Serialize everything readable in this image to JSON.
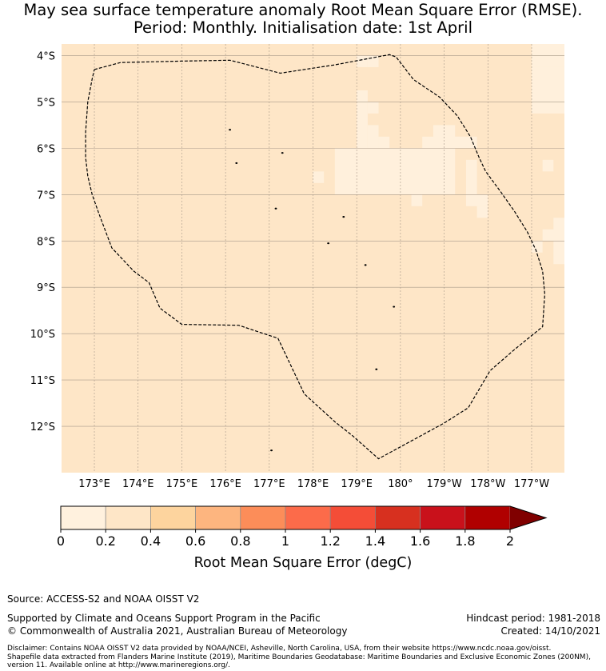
{
  "title": {
    "line1": "May sea surface temperature anomaly Root Mean Square Error (RMSE).",
    "line2": "Period: Monthly. Initialisation date: 1st April"
  },
  "map": {
    "lat_range": [
      -13.0,
      -3.75
    ],
    "lon_range": [
      172.25,
      183.75
    ],
    "lat_labels": [
      "4°S",
      "5°S",
      "6°S",
      "7°S",
      "8°S",
      "9°S",
      "10°S",
      "11°S",
      "12°S"
    ],
    "lat_values": [
      -4,
      -5,
      -6,
      -7,
      -8,
      -9,
      -10,
      -11,
      -12
    ],
    "lon_labels": [
      "173°E",
      "174°E",
      "175°E",
      "176°E",
      "177°E",
      "178°E",
      "179°E",
      "180°",
      "179°W",
      "178°W",
      "177°W"
    ],
    "lon_values": [
      173,
      174,
      175,
      176,
      177,
      178,
      179,
      180,
      181,
      182,
      183
    ],
    "background_color": "#fee6c7",
    "low_value_color": "#fff0dc",
    "low_value_cells": [
      [
        179.0,
        -4.75,
        0.25,
        1.25
      ],
      [
        179.25,
        -5.5,
        0.25,
        0.5
      ],
      [
        179.5,
        -5.75,
        0.25,
        0.25
      ],
      [
        178.75,
        -6.0,
        0.25,
        0.25
      ],
      [
        178.5,
        -6.0,
        2.75,
        1.0
      ],
      [
        180.75,
        -5.5,
        0.5,
        0.5
      ],
      [
        180.5,
        -5.75,
        1.25,
        0.25
      ],
      [
        181.25,
        -5.75,
        0.25,
        0.25
      ],
      [
        181.5,
        -6.25,
        0.25,
        0.75
      ],
      [
        181.5,
        -7.0,
        0.5,
        0.25
      ],
      [
        181.75,
        -7.25,
        0.25,
        0.25
      ],
      [
        180.25,
        -7.0,
        0.25,
        0.25
      ],
      [
        179.0,
        -4.0,
        0.25,
        0.25
      ],
      [
        179.25,
        -4.0,
        0.25,
        0.25
      ],
      [
        179.25,
        -5.0,
        0.25,
        0.25
      ],
      [
        183.0,
        -3.75,
        0.75,
        0.5
      ],
      [
        183.0,
        -4.25,
        0.75,
        1.0
      ],
      [
        183.25,
        -6.25,
        0.25,
        0.25
      ],
      [
        183.5,
        -7.5,
        0.25,
        1.0
      ],
      [
        183.0,
        -8.0,
        0.25,
        0.25
      ],
      [
        183.25,
        -7.75,
        0.5,
        0.25
      ],
      [
        178.0,
        -6.5,
        0.25,
        0.25
      ]
    ],
    "eez_boundary": [
      [
        173.0,
        -4.3
      ],
      [
        173.6,
        -4.15
      ],
      [
        175.0,
        -4.12
      ],
      [
        176.1,
        -4.1
      ],
      [
        177.25,
        -4.38
      ],
      [
        178.5,
        -4.2
      ],
      [
        179.75,
        -3.98
      ],
      [
        179.9,
        -4.03
      ],
      [
        180.3,
        -4.52
      ],
      [
        180.9,
        -4.9
      ],
      [
        181.3,
        -5.3
      ],
      [
        181.6,
        -5.75
      ],
      [
        181.8,
        -6.2
      ],
      [
        181.95,
        -6.5
      ],
      [
        182.3,
        -6.95
      ],
      [
        182.6,
        -7.35
      ],
      [
        182.9,
        -7.8
      ],
      [
        183.1,
        -8.2
      ],
      [
        183.25,
        -8.65
      ],
      [
        183.3,
        -9.15
      ],
      [
        183.25,
        -9.85
      ],
      [
        182.6,
        -10.35
      ],
      [
        182.05,
        -10.8
      ],
      [
        181.55,
        -11.6
      ],
      [
        181.0,
        -11.93
      ],
      [
        179.5,
        -12.7
      ],
      [
        178.9,
        -12.2
      ],
      [
        178.5,
        -11.9
      ],
      [
        177.8,
        -11.3
      ],
      [
        177.2,
        -10.1
      ],
      [
        176.3,
        -9.82
      ],
      [
        175.0,
        -9.8
      ],
      [
        174.5,
        -9.45
      ],
      [
        174.25,
        -8.9
      ],
      [
        173.9,
        -8.65
      ],
      [
        173.4,
        -8.15
      ],
      [
        173.1,
        -7.4
      ],
      [
        172.95,
        -7.0
      ],
      [
        172.85,
        -6.6
      ],
      [
        172.8,
        -6.2
      ],
      [
        172.8,
        -5.65
      ],
      [
        172.85,
        -5.0
      ],
      [
        172.95,
        -4.5
      ],
      [
        173.0,
        -4.3
      ]
    ],
    "islands": [
      [
        176.1,
        -5.6
      ],
      [
        176.25,
        -6.32
      ],
      [
        177.3,
        -6.1
      ],
      [
        177.15,
        -7.3
      ],
      [
        178.7,
        -7.48
      ],
      [
        178.35,
        -8.05
      ],
      [
        179.2,
        -8.52
      ],
      [
        179.85,
        -9.42
      ],
      [
        179.45,
        -10.77
      ],
      [
        177.05,
        -12.52
      ]
    ]
  },
  "colorbar": {
    "boundaries": [
      0,
      0.2,
      0.4,
      0.6,
      0.8,
      1.0,
      1.2,
      1.4,
      1.6,
      1.8,
      2.0
    ],
    "tick_labels": [
      "0",
      "0.2",
      "0.4",
      "0.6",
      "0.8",
      "1",
      "1.2",
      "1.4",
      "1.6",
      "1.8",
      "2"
    ],
    "colors": [
      "#fff1de",
      "#fee6c7",
      "#fdd49e",
      "#fdb57f",
      "#fc8d59",
      "#fc6b4a",
      "#f44d37",
      "#d7301f",
      "#c9111b",
      "#b00000"
    ],
    "extend_color": "#800000",
    "label": "Root Mean Square Error (degC)"
  },
  "footer": {
    "source": "Source: ACCESS-S2 and NOAA OISST V2",
    "support": "Supported by Climate and Oceans Support Program in the Pacific",
    "copyright": "© Commonwealth of Australia 2021, Australian Bureau of Meteorology",
    "hindcast": "Hindcast period: 1981-2018",
    "created": "Created: 14/10/2021",
    "disclaimer_line1": "Disclaimer: Contains NOAA OISST V2 data provided by NOAA/NCEI, Asheville, North Carolina, USA, from their website https://www.ncdc.noaa.gov/oisst.",
    "disclaimer_line2": "Shapefile data extracted from Flanders Marine Institute (2019), Maritime Boundaries Geodatabase: Maritime Boundaries and Exclusive Economic Zones (200NM),",
    "disclaimer_line3": "version 11. Available online at http://www.marineregions.org/."
  }
}
